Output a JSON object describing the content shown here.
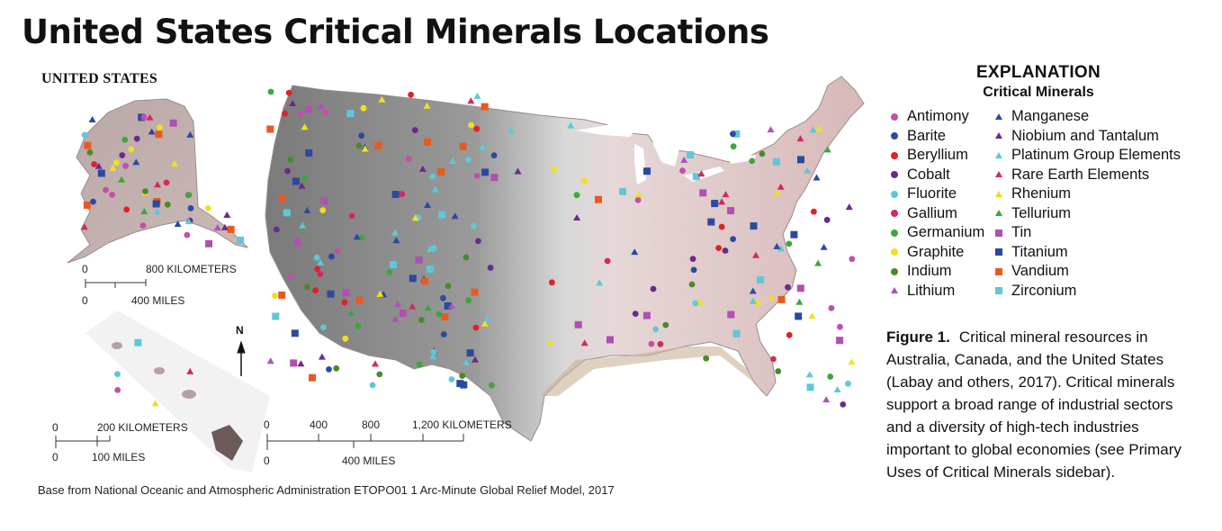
{
  "title": "United States Critical Minerals Locations",
  "country_label": "UNITED STATES",
  "scale_alaska": {
    "top_left": "0",
    "top_right": "800 KILOMETERS",
    "bottom_left": "0",
    "bottom_right": "400 MILES"
  },
  "scale_hawaii": {
    "top_left": "0",
    "top_right": "200 KILOMETERS",
    "bottom_left": "0",
    "bottom_right": "100 MILES"
  },
  "scale_main": {
    "t0": "0",
    "t1": "400",
    "t2": "800",
    "t3": "1,200 KILOMETERS",
    "b0": "0",
    "b1": "400 MILES"
  },
  "north_label": "N",
  "base_caption": "Base from National Oceanic and Atmospheric Administration ETOPO01 1 Arc-Minute Global Relief Model, 2017",
  "legend": {
    "title": "EXPLANATION",
    "subtitle": "Critical Minerals",
    "items": [
      {
        "label": "Antimony",
        "shape": "circle",
        "color": "#c44fa8"
      },
      {
        "label": "Barite",
        "shape": "circle",
        "color": "#2b4aa0"
      },
      {
        "label": "Beryllium",
        "shape": "circle",
        "color": "#e0202a"
      },
      {
        "label": "Cobalt",
        "shape": "circle",
        "color": "#6a2a8a"
      },
      {
        "label": "Fluorite",
        "shape": "circle",
        "color": "#5ec8d6"
      },
      {
        "label": "Gallium",
        "shape": "circle",
        "color": "#d02a5e"
      },
      {
        "label": "Germanium",
        "shape": "circle",
        "color": "#3aa83a"
      },
      {
        "label": "Graphite",
        "shape": "circle",
        "color": "#f0e020"
      },
      {
        "label": "Indium",
        "shape": "circle",
        "color": "#4a8a2a"
      },
      {
        "label": "Lithium",
        "shape": "triangle",
        "color": "#b050c0"
      },
      {
        "label": "Manganese",
        "shape": "triangle",
        "color": "#2a4aa0"
      },
      {
        "label": "Niobium and Tantalum",
        "shape": "triangle",
        "color": "#6a2a8a"
      },
      {
        "label": "Platinum Group Elements",
        "shape": "triangle",
        "color": "#5ec8d6"
      },
      {
        "label": "Rare Earth Elements",
        "shape": "triangle",
        "color": "#d02a5e"
      },
      {
        "label": "Rhenium",
        "shape": "triangle",
        "color": "#f0e020"
      },
      {
        "label": "Tellurium",
        "shape": "triangle",
        "color": "#3aa83a"
      },
      {
        "label": "Tin",
        "shape": "square",
        "color": "#b050b0"
      },
      {
        "label": "Titanium",
        "shape": "square",
        "color": "#2a4aa0"
      },
      {
        "label": "Vandium",
        "shape": "square",
        "color": "#e85a20"
      },
      {
        "label": "Zirconium",
        "shape": "square",
        "color": "#5ec8d6"
      }
    ]
  },
  "figure_caption": {
    "label": "Figure 1.",
    "text": "Critical mineral resources in Australia, Canada, and the United States (Labay and others, 2017). Critical minerals support a broad range of industrial sectors and a diversity of high-tech industries important to global economies (see Primary Uses of Critical Minerals sidebar)."
  }
}
